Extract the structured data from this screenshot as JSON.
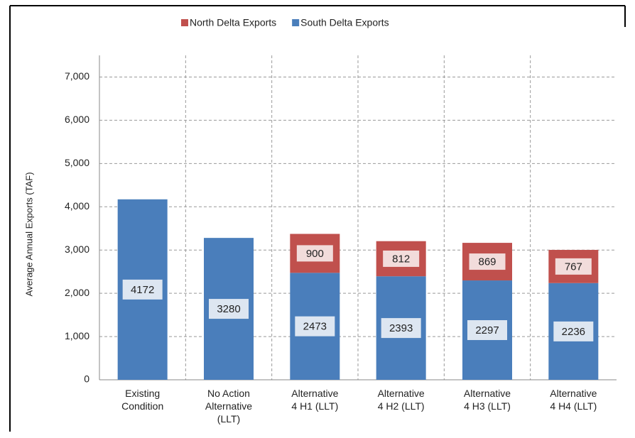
{
  "chart_data": {
    "type": "stacked_bar",
    "y_label": "Average Annual Exports (TAF)",
    "categories": [
      [
        "Existing",
        "Condition"
      ],
      [
        "No Action",
        "Alternative",
        "(LLT)"
      ],
      [
        "Alternative",
        "4 H1  (LLT)"
      ],
      [
        "Alternative",
        "4 H2  (LLT)"
      ],
      [
        "Alternative",
        "4 H3  (LLT)"
      ],
      [
        "Alternative",
        "4 H4  (LLT)"
      ]
    ],
    "series": [
      {
        "name": "South Delta Exports",
        "color": "#4a7ebb",
        "values": [
          4172,
          3280,
          2473,
          2393,
          2297,
          2236
        ]
      },
      {
        "name": "North Delta Exports",
        "color": "#c0504d",
        "values": [
          null,
          null,
          900,
          812,
          869,
          767
        ]
      }
    ],
    "legend_order": [
      1,
      0
    ],
    "ylim": [
      0,
      7500
    ],
    "yticks": [
      0,
      {
        "value": 1000,
        "label": "1,000"
      },
      {
        "value": 2000,
        "label": "2,000"
      },
      {
        "value": 3000,
        "label": "3,000"
      },
      {
        "value": 4000,
        "label": "4,000"
      },
      {
        "value": 5000,
        "label": "5,000"
      },
      {
        "value": 6000,
        "label": "6,000"
      },
      {
        "value": 7000,
        "label": "7,000"
      }
    ],
    "grid": true
  }
}
